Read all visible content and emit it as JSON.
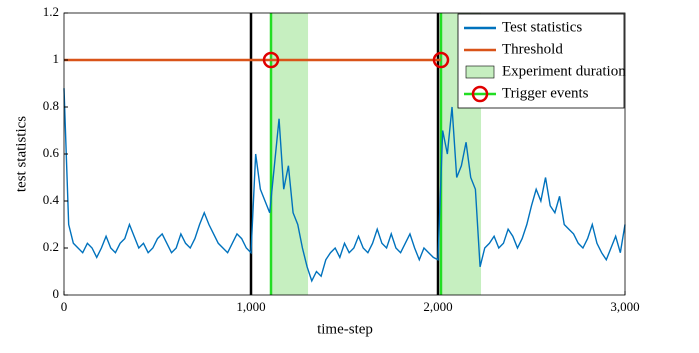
{
  "chart_data": {
    "type": "line",
    "xlabel": "time-step",
    "ylabel": "test statistics",
    "xlim": [
      0,
      3000
    ],
    "ylim": [
      0,
      1.2
    ],
    "xticks": [
      0,
      {
        "value": 1000,
        "label": "1,000"
      },
      {
        "value": 2000,
        "label": "2,000"
      },
      {
        "value": 3000,
        "label": "3,000"
      }
    ],
    "yticks": [
      0,
      0.2,
      0.4,
      0.6,
      0.8,
      1,
      1.2
    ],
    "vlines": [
      1000,
      2000
    ],
    "series": [
      {
        "name": "Test statistics",
        "color": "#0072bd",
        "x": [
          0,
          25,
          50,
          75,
          100,
          125,
          150,
          175,
          200,
          225,
          250,
          275,
          300,
          325,
          350,
          375,
          400,
          425,
          450,
          475,
          500,
          525,
          550,
          575,
          600,
          625,
          650,
          675,
          700,
          725,
          750,
          775,
          800,
          825,
          850,
          875,
          900,
          925,
          950,
          975,
          1000,
          1025,
          1050,
          1075,
          1100,
          1125,
          1150,
          1175,
          1200,
          1225,
          1250,
          1275,
          1300,
          1325,
          1350,
          1375,
          1400,
          1425,
          1450,
          1475,
          1500,
          1525,
          1550,
          1575,
          1600,
          1625,
          1650,
          1675,
          1700,
          1725,
          1750,
          1775,
          1800,
          1825,
          1850,
          1875,
          1900,
          1925,
          1950,
          1975,
          2000,
          2025,
          2050,
          2075,
          2100,
          2125,
          2150,
          2175,
          2200,
          2225,
          2250,
          2275,
          2300,
          2325,
          2350,
          2375,
          2400,
          2425,
          2450,
          2475,
          2500,
          2525,
          2550,
          2575,
          2600,
          2625,
          2650,
          2675,
          2700,
          2725,
          2750,
          2775,
          2800,
          2825,
          2850,
          2875,
          2900,
          2925,
          2950,
          2975,
          3000
        ],
        "values": [
          0.88,
          0.3,
          0.22,
          0.2,
          0.18,
          0.22,
          0.2,
          0.16,
          0.2,
          0.25,
          0.2,
          0.18,
          0.22,
          0.24,
          0.3,
          0.25,
          0.2,
          0.22,
          0.18,
          0.2,
          0.24,
          0.26,
          0.22,
          0.18,
          0.2,
          0.26,
          0.22,
          0.2,
          0.24,
          0.3,
          0.35,
          0.3,
          0.26,
          0.22,
          0.2,
          0.18,
          0.22,
          0.26,
          0.24,
          0.2,
          0.18,
          0.6,
          0.45,
          0.4,
          0.35,
          0.55,
          0.75,
          0.45,
          0.55,
          0.35,
          0.3,
          0.2,
          0.12,
          0.06,
          0.1,
          0.08,
          0.15,
          0.18,
          0.2,
          0.16,
          0.22,
          0.18,
          0.2,
          0.25,
          0.2,
          0.18,
          0.22,
          0.28,
          0.22,
          0.2,
          0.26,
          0.2,
          0.18,
          0.22,
          0.26,
          0.2,
          0.15,
          0.2,
          0.18,
          0.16,
          0.15,
          0.7,
          0.6,
          0.8,
          0.5,
          0.55,
          0.65,
          0.5,
          0.45,
          0.12,
          0.2,
          0.22,
          0.25,
          0.2,
          0.22,
          0.28,
          0.25,
          0.2,
          0.24,
          0.3,
          0.38,
          0.45,
          0.4,
          0.5,
          0.38,
          0.35,
          0.42,
          0.3,
          0.28,
          0.26,
          0.22,
          0.2,
          0.24,
          0.3,
          0.22,
          0.18,
          0.15,
          0.2,
          0.25,
          0.18,
          0.3
        ]
      },
      {
        "name": "Threshold",
        "color": "#d95319",
        "x": [
          0,
          2016
        ],
        "values": [
          1,
          1
        ]
      },
      {
        "name": "Experiment duration",
        "color": "#c6efc0",
        "spans": [
          [
            1107,
            1305
          ],
          [
            2016,
            2230
          ]
        ]
      },
      {
        "name": "Trigger events",
        "color": "#e00000",
        "line_color": "#22dd22",
        "x": [
          1107,
          2016
        ],
        "values": [
          1,
          1
        ]
      }
    ]
  }
}
